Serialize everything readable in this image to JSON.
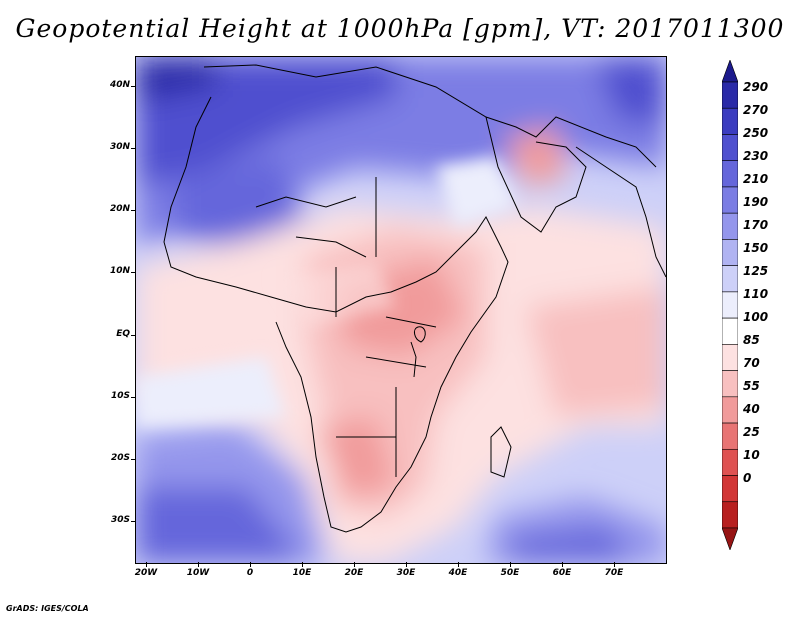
{
  "title": "Geopotential Height at 1000hPa [gpm], VT: 2017011300",
  "footer": "GrADS: IGES/COLA",
  "axes": {
    "lat_labels": [
      "40N",
      "30N",
      "20N",
      "10N",
      "EQ",
      "10S",
      "20S",
      "30S"
    ],
    "lon_labels": [
      "20W",
      "10W",
      "0",
      "10E",
      "20E",
      "30E",
      "40E",
      "50E",
      "60E",
      "70E"
    ]
  },
  "colorbar": {
    "labels": [
      "290",
      "270",
      "250",
      "230",
      "210",
      "190",
      "170",
      "150",
      "125",
      "110",
      "100",
      "85",
      "70",
      "55",
      "40",
      "25",
      "10",
      "0"
    ],
    "colors": [
      "#1c1a8c",
      "#2a2aa8",
      "#3b3cc0",
      "#4f50cf",
      "#6566db",
      "#7b7de4",
      "#9496ec",
      "#b0b3f2",
      "#cdd0f8",
      "#eceefc",
      "#ffffff",
      "#fde1e1",
      "#f8c0c0",
      "#f19b9b",
      "#e87474",
      "#df5252",
      "#d23636",
      "#b81f1f",
      "#961414"
    ]
  },
  "chart_data": {
    "type": "heatmap",
    "title": "Geopotential Height at 1000hPa [gpm], VT: 2017011300",
    "lon_range": [
      -22,
      80
    ],
    "lat_range": [
      -37,
      45
    ],
    "contour_levels": [
      0,
      10,
      25,
      40,
      55,
      70,
      85,
      100,
      110,
      125,
      150,
      170,
      190,
      210,
      230,
      250,
      270,
      290
    ],
    "footer": "GrADS: IGES/COLA"
  }
}
